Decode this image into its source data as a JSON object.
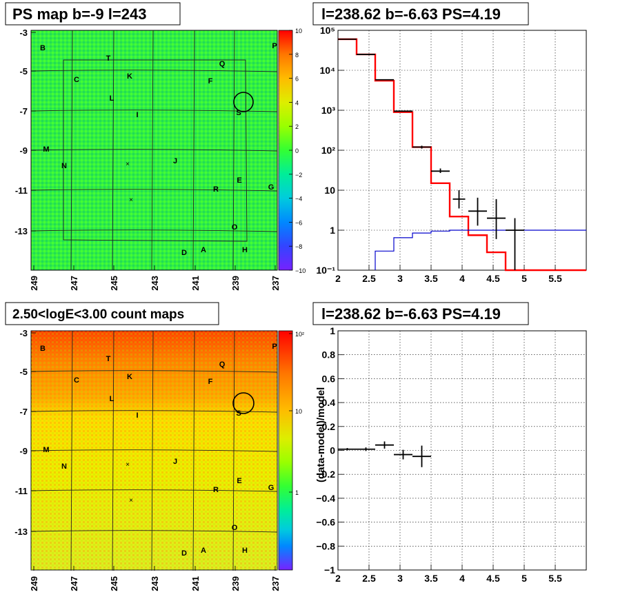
{
  "titles": {
    "map_top": "PS map b=-9 l=243",
    "spec_top": "l=238.62 b=-6.63 PS=4.19",
    "map_bottom": "2.50<logE<3.00 count maps",
    "resid_bottom": "l=238.62 b=-6.63 PS=4.19"
  },
  "map": {
    "y_ticks": [
      "-3",
      "-5",
      "-7",
      "-9",
      "-11",
      "-13"
    ],
    "x_ticks": [
      "249",
      "247",
      "245",
      "243",
      "241",
      "239",
      "237"
    ],
    "source_labels": [
      "B",
      "P",
      "T",
      "Q",
      "C",
      "K",
      "F",
      "L",
      "I",
      "S",
      "M",
      "N",
      "J",
      "E",
      "R",
      "G",
      "O",
      "D",
      "A",
      "H"
    ],
    "markers": [
      "×",
      "×"
    ]
  },
  "colorbar_top": {
    "ticks": [
      "10",
      "8",
      "6",
      "4",
      "2",
      "0",
      "−2",
      "−4",
      "−6",
      "−8",
      "−10"
    ],
    "colors": [
      "#ff0000",
      "#ff7700",
      "#ffbb00",
      "#ddee00",
      "#99ff00",
      "#33ff33",
      "#00ee99",
      "#00ccdd",
      "#0088ff",
      "#3344ff",
      "#7722ff"
    ]
  },
  "colorbar_bottom": {
    "ticks": [
      "10²",
      "10",
      "1"
    ]
  },
  "chart_data": [
    {
      "type": "line",
      "title": "l=238.62 b=-6.63 PS=4.19",
      "xlim": [
        2,
        6
      ],
      "ylim": [
        0.1,
        100000
      ],
      "yscale": "log",
      "x_tick_labels": [
        "2",
        "2.5",
        "3",
        "3.5",
        "4",
        "4.5",
        "5",
        "5.5"
      ],
      "y_tick_labels": [
        "10⁵",
        "10⁴",
        "10³",
        "10²",
        "10",
        "1",
        "10⁻¹"
      ],
      "grid": true,
      "series": [
        {
          "kind": "model_step",
          "color": "#ff0000",
          "bins": [
            [
              2.0,
              2.3
            ],
            [
              2.3,
              2.6
            ],
            [
              2.6,
              2.9
            ],
            [
              2.9,
              3.2
            ],
            [
              3.2,
              3.5
            ],
            [
              3.5,
              3.8
            ],
            [
              3.8,
              4.1
            ],
            [
              4.1,
              4.4
            ],
            [
              4.4,
              4.7
            ],
            [
              4.7,
              6.0
            ]
          ],
          "values": [
            60000,
            25000,
            5500,
            900,
            120,
            15,
            2.2,
            0.75,
            0.28,
            0.1
          ]
        },
        {
          "kind": "source_step",
          "color": "#0000cc",
          "bins": [
            [
              2.6,
              2.9
            ],
            [
              2.9,
              3.2
            ],
            [
              3.2,
              3.5
            ],
            [
              3.5,
              3.8
            ],
            [
              3.8,
              6.0
            ]
          ],
          "values": [
            0.3,
            0.65,
            0.85,
            0.95,
            1.0
          ]
        },
        {
          "kind": "data_points",
          "color": "#000000",
          "x": [
            2.15,
            2.45,
            2.75,
            3.05,
            3.35,
            3.65,
            3.95,
            4.25,
            4.55,
            4.85
          ],
          "xerr": [
            0.15,
            0.15,
            0.15,
            0.15,
            0.15,
            0.15,
            0.1,
            0.15,
            0.15,
            0.15
          ],
          "y": [
            60000,
            25000,
            5800,
            950,
            120,
            30,
            6,
            3,
            2,
            1
          ],
          "ylo": [
            59000,
            24500,
            5650,
            920,
            110,
            27,
            3.5,
            1.3,
            0.6,
            0.1
          ],
          "yhi": [
            61000,
            25500,
            5950,
            980,
            130,
            35,
            10,
            6.5,
            6,
            2
          ]
        }
      ]
    },
    {
      "type": "scatter",
      "title": "l=238.62 b=-6.63 PS=4.19",
      "ylabel": "(data-model)/model",
      "xlim": [
        2,
        6
      ],
      "ylim": [
        -1,
        1
      ],
      "x_tick_labels": [
        "2",
        "2.5",
        "3",
        "3.5",
        "4",
        "4.5",
        "5",
        "5.5"
      ],
      "y_tick_labels": [
        "1",
        "0.8",
        "0.6",
        "0.4",
        "0.2",
        "0",
        "−0.2",
        "−0.4",
        "−0.6",
        "−0.8",
        "−1"
      ],
      "grid": true,
      "x": [
        2.15,
        2.45,
        2.75,
        3.05,
        3.35
      ],
      "xerr": [
        0.15,
        0.15,
        0.15,
        0.15,
        0.15
      ],
      "y": [
        0.01,
        0.01,
        0.045,
        -0.035,
        -0.05
      ],
      "yerr": [
        0.01,
        0.015,
        0.03,
        0.04,
        0.09
      ]
    }
  ]
}
